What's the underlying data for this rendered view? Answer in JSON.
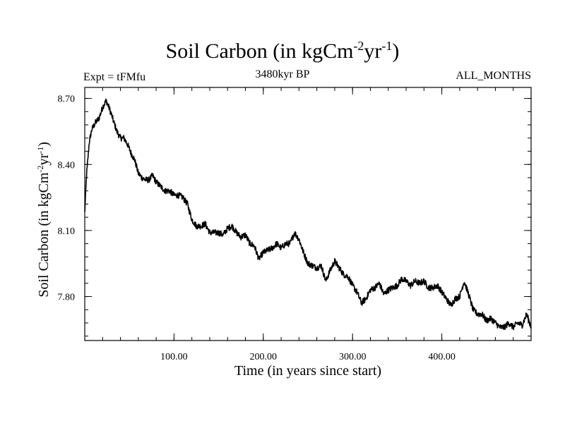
{
  "header": {
    "title_main": "Soil Carbon (in kgCm",
    "title_exp1": "-2",
    "title_mid": "yr",
    "title_exp2": "-1",
    "title_end": ")",
    "expt": "Expt = tFMfu",
    "period": "3480kyr BP",
    "months": "ALL_MONTHS"
  },
  "chart_data": {
    "type": "line",
    "title": "Soil Carbon (in kgCm-2yr-1)",
    "xlabel": "Time (in years since start)",
    "ylabel": "Soil Carbon (in kgCm-2yr-1)",
    "ylabel_parts": {
      "main": "Soil Carbon (in kgCm",
      "exp1": "-2",
      "mid": "yr",
      "exp2": "-1",
      "end": ")"
    },
    "xlim": [
      0,
      500
    ],
    "ylim": [
      7.6,
      8.75
    ],
    "xticks": [
      100,
      200,
      300,
      400
    ],
    "xtick_labels": [
      "100.00",
      "200.00",
      "300.00",
      "400.00"
    ],
    "yticks": [
      7.8,
      8.1,
      8.4,
      8.7
    ],
    "ytick_labels": [
      "7.80",
      "8.10",
      "8.40",
      "8.70"
    ],
    "series": [
      {
        "name": "Soil Carbon",
        "x": [
          0,
          2,
          5,
          8,
          12,
          16,
          20,
          24,
          28,
          32,
          36,
          40,
          44,
          48,
          52,
          56,
          60,
          64,
          68,
          72,
          76,
          80,
          85,
          90,
          95,
          100,
          105,
          110,
          115,
          120,
          125,
          130,
          135,
          140,
          145,
          150,
          155,
          160,
          165,
          170,
          175,
          180,
          185,
          190,
          195,
          200,
          205,
          210,
          215,
          220,
          225,
          230,
          235,
          240,
          245,
          250,
          255,
          260,
          265,
          270,
          275,
          280,
          285,
          290,
          295,
          300,
          305,
          310,
          315,
          320,
          325,
          330,
          335,
          340,
          345,
          350,
          355,
          360,
          365,
          370,
          375,
          380,
          385,
          390,
          395,
          400,
          405,
          410,
          415,
          420,
          425,
          430,
          435,
          440,
          445,
          450,
          455,
          460,
          465,
          470,
          475,
          480,
          485,
          490,
          495,
          500
        ],
        "values": [
          8.18,
          8.35,
          8.5,
          8.56,
          8.59,
          8.61,
          8.66,
          8.69,
          8.65,
          8.6,
          8.55,
          8.52,
          8.52,
          8.49,
          8.45,
          8.42,
          8.36,
          8.34,
          8.33,
          8.33,
          8.35,
          8.32,
          8.3,
          8.28,
          8.28,
          8.26,
          8.26,
          8.25,
          8.22,
          8.15,
          8.12,
          8.12,
          8.13,
          8.09,
          8.09,
          8.09,
          8.08,
          8.11,
          8.12,
          8.09,
          8.07,
          8.08,
          8.04,
          8.03,
          7.97,
          8.0,
          8.01,
          8.02,
          8.04,
          8.02,
          8.04,
          8.04,
          8.09,
          8.06,
          8.0,
          7.95,
          7.94,
          7.93,
          7.94,
          7.87,
          7.92,
          7.96,
          7.93,
          7.9,
          7.89,
          7.85,
          7.82,
          7.77,
          7.79,
          7.83,
          7.84,
          7.86,
          7.81,
          7.83,
          7.84,
          7.85,
          7.88,
          7.87,
          7.85,
          7.87,
          7.86,
          7.87,
          7.84,
          7.84,
          7.85,
          7.82,
          7.79,
          7.76,
          7.79,
          7.8,
          7.87,
          7.81,
          7.74,
          7.72,
          7.72,
          7.69,
          7.7,
          7.68,
          7.66,
          7.66,
          7.68,
          7.66,
          7.68,
          7.67,
          7.72,
          7.66
        ]
      }
    ]
  }
}
